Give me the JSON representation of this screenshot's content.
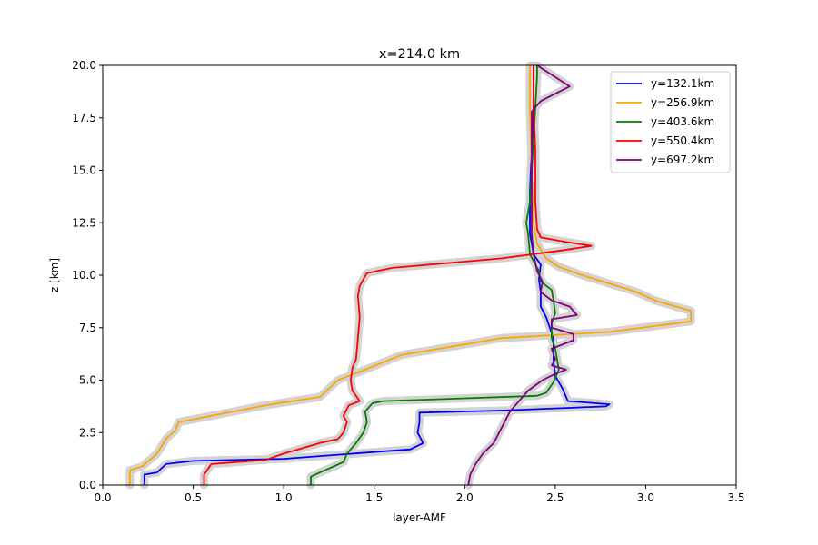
{
  "chart_data": {
    "type": "line",
    "title": "x=214.0 km",
    "xlabel": "layer-AMF",
    "ylabel": "z [km]",
    "xlim": [
      0.0,
      3.5
    ],
    "ylim": [
      0.0,
      20.0
    ],
    "xticks": [
      "0.0",
      "0.5",
      "1.0",
      "1.5",
      "2.0",
      "2.5",
      "3.0",
      "3.5"
    ],
    "yticks": [
      "0.0",
      "2.5",
      "5.0",
      "7.5",
      "10.0",
      "12.5",
      "15.0",
      "17.5",
      "20.0"
    ],
    "grid": false,
    "legend_position": "top-right",
    "band_color": "#d3d3d3",
    "series": [
      {
        "name": "y=132.1km",
        "color": "#0000ff",
        "points": [
          [
            0.23,
            0.0
          ],
          [
            0.23,
            0.5
          ],
          [
            0.3,
            0.6
          ],
          [
            0.35,
            1.0
          ],
          [
            0.5,
            1.15
          ],
          [
            1.0,
            1.25
          ],
          [
            1.7,
            1.7
          ],
          [
            1.77,
            2.0
          ],
          [
            1.74,
            2.5
          ],
          [
            1.75,
            3.0
          ],
          [
            1.75,
            3.45
          ],
          [
            2.2,
            3.55
          ],
          [
            2.78,
            3.75
          ],
          [
            2.8,
            3.85
          ],
          [
            2.57,
            4.0
          ],
          [
            2.54,
            4.6
          ],
          [
            2.5,
            5.2
          ],
          [
            2.49,
            6.0
          ],
          [
            2.49,
            7.0
          ],
          [
            2.45,
            8.0
          ],
          [
            2.42,
            8.5
          ],
          [
            2.42,
            9.2
          ],
          [
            2.41,
            9.8
          ],
          [
            2.42,
            10.5
          ],
          [
            2.38,
            11.0
          ],
          [
            2.36,
            12.0
          ],
          [
            2.36,
            14.0
          ],
          [
            2.37,
            16.0
          ],
          [
            2.38,
            18.0
          ],
          [
            2.38,
            20.0
          ]
        ]
      },
      {
        "name": "y=256.9km",
        "color": "#ffa500",
        "points": [
          [
            0.15,
            0.0
          ],
          [
            0.15,
            0.7
          ],
          [
            0.22,
            0.9
          ],
          [
            0.3,
            1.5
          ],
          [
            0.35,
            2.2
          ],
          [
            0.4,
            2.6
          ],
          [
            0.42,
            3.0
          ],
          [
            0.6,
            3.3
          ],
          [
            0.9,
            3.8
          ],
          [
            1.2,
            4.2
          ],
          [
            1.3,
            5.0
          ],
          [
            1.45,
            5.5
          ],
          [
            1.65,
            6.2
          ],
          [
            2.0,
            6.7
          ],
          [
            2.2,
            7.0
          ],
          [
            2.8,
            7.3
          ],
          [
            3.25,
            7.8
          ],
          [
            3.25,
            8.3
          ],
          [
            3.05,
            8.8
          ],
          [
            2.95,
            9.2
          ],
          [
            2.65,
            10.0
          ],
          [
            2.52,
            10.4
          ],
          [
            2.45,
            10.8
          ],
          [
            2.4,
            11.5
          ],
          [
            2.38,
            12.5
          ],
          [
            2.37,
            15.0
          ],
          [
            2.36,
            18.0
          ],
          [
            2.36,
            20.0
          ]
        ]
      },
      {
        "name": "y=403.6km",
        "color": "#008000",
        "points": [
          [
            1.15,
            0.0
          ],
          [
            1.15,
            0.4
          ],
          [
            1.2,
            0.6
          ],
          [
            1.28,
            0.9
          ],
          [
            1.33,
            1.1
          ],
          [
            1.35,
            1.5
          ],
          [
            1.4,
            2.0
          ],
          [
            1.44,
            2.5
          ],
          [
            1.46,
            3.0
          ],
          [
            1.45,
            3.5
          ],
          [
            1.49,
            3.9
          ],
          [
            1.55,
            4.0
          ],
          [
            2.4,
            4.25
          ],
          [
            2.45,
            4.4
          ],
          [
            2.49,
            4.9
          ],
          [
            2.52,
            5.5
          ],
          [
            2.5,
            6.5
          ],
          [
            2.48,
            7.0
          ],
          [
            2.48,
            7.7
          ],
          [
            2.5,
            8.2
          ],
          [
            2.49,
            8.8
          ],
          [
            2.48,
            9.3
          ],
          [
            2.42,
            9.7
          ],
          [
            2.41,
            10.2
          ],
          [
            2.36,
            11.0
          ],
          [
            2.35,
            12.0
          ],
          [
            2.34,
            12.5
          ],
          [
            2.36,
            13.5
          ],
          [
            2.37,
            15.0
          ],
          [
            2.38,
            16.5
          ],
          [
            2.39,
            18.0
          ],
          [
            2.4,
            19.5
          ],
          [
            2.4,
            20.0
          ]
        ]
      },
      {
        "name": "y=550.4km",
        "color": "#ff0000",
        "points": [
          [
            0.56,
            0.0
          ],
          [
            0.56,
            0.5
          ],
          [
            0.6,
            1.0
          ],
          [
            0.9,
            1.2
          ],
          [
            1.0,
            1.5
          ],
          [
            1.2,
            2.0
          ],
          [
            1.3,
            2.2
          ],
          [
            1.33,
            2.5
          ],
          [
            1.35,
            3.0
          ],
          [
            1.33,
            3.3
          ],
          [
            1.36,
            3.8
          ],
          [
            1.42,
            4.0
          ],
          [
            1.38,
            4.5
          ],
          [
            1.37,
            5.0
          ],
          [
            1.38,
            5.6
          ],
          [
            1.4,
            6.0
          ],
          [
            1.41,
            7.0
          ],
          [
            1.42,
            8.0
          ],
          [
            1.41,
            9.0
          ],
          [
            1.42,
            9.5
          ],
          [
            1.46,
            10.1
          ],
          [
            1.6,
            10.35
          ],
          [
            2.2,
            10.8
          ],
          [
            2.55,
            11.2
          ],
          [
            2.7,
            11.4
          ],
          [
            2.55,
            11.6
          ],
          [
            2.42,
            11.8
          ],
          [
            2.4,
            12.2
          ],
          [
            2.39,
            13.5
          ],
          [
            2.39,
            16.0
          ],
          [
            2.38,
            18.0
          ],
          [
            2.38,
            20.0
          ]
        ]
      },
      {
        "name": "y=697.2km",
        "color": "#800080",
        "points": [
          [
            2.02,
            0.0
          ],
          [
            2.03,
            0.5
          ],
          [
            2.06,
            1.0
          ],
          [
            2.1,
            1.5
          ],
          [
            2.16,
            2.0
          ],
          [
            2.19,
            2.5
          ],
          [
            2.22,
            3.0
          ],
          [
            2.25,
            3.5
          ],
          [
            2.3,
            4.0
          ],
          [
            2.35,
            4.5
          ],
          [
            2.43,
            5.0
          ],
          [
            2.5,
            5.3
          ],
          [
            2.56,
            5.5
          ],
          [
            2.48,
            5.7
          ],
          [
            2.5,
            6.0
          ],
          [
            2.48,
            6.5
          ],
          [
            2.6,
            6.9
          ],
          [
            2.6,
            7.2
          ],
          [
            2.48,
            7.5
          ],
          [
            2.48,
            7.9
          ],
          [
            2.62,
            8.1
          ],
          [
            2.58,
            8.5
          ],
          [
            2.48,
            8.8
          ],
          [
            2.42,
            9.2
          ],
          [
            2.43,
            9.7
          ],
          [
            2.4,
            10.2
          ],
          [
            2.38,
            11.0
          ],
          [
            2.37,
            12.0
          ],
          [
            2.37,
            14.0
          ],
          [
            2.37,
            16.0
          ],
          [
            2.37,
            17.8
          ],
          [
            2.42,
            18.3
          ],
          [
            2.58,
            19.0
          ],
          [
            2.4,
            20.0
          ]
        ]
      }
    ]
  }
}
